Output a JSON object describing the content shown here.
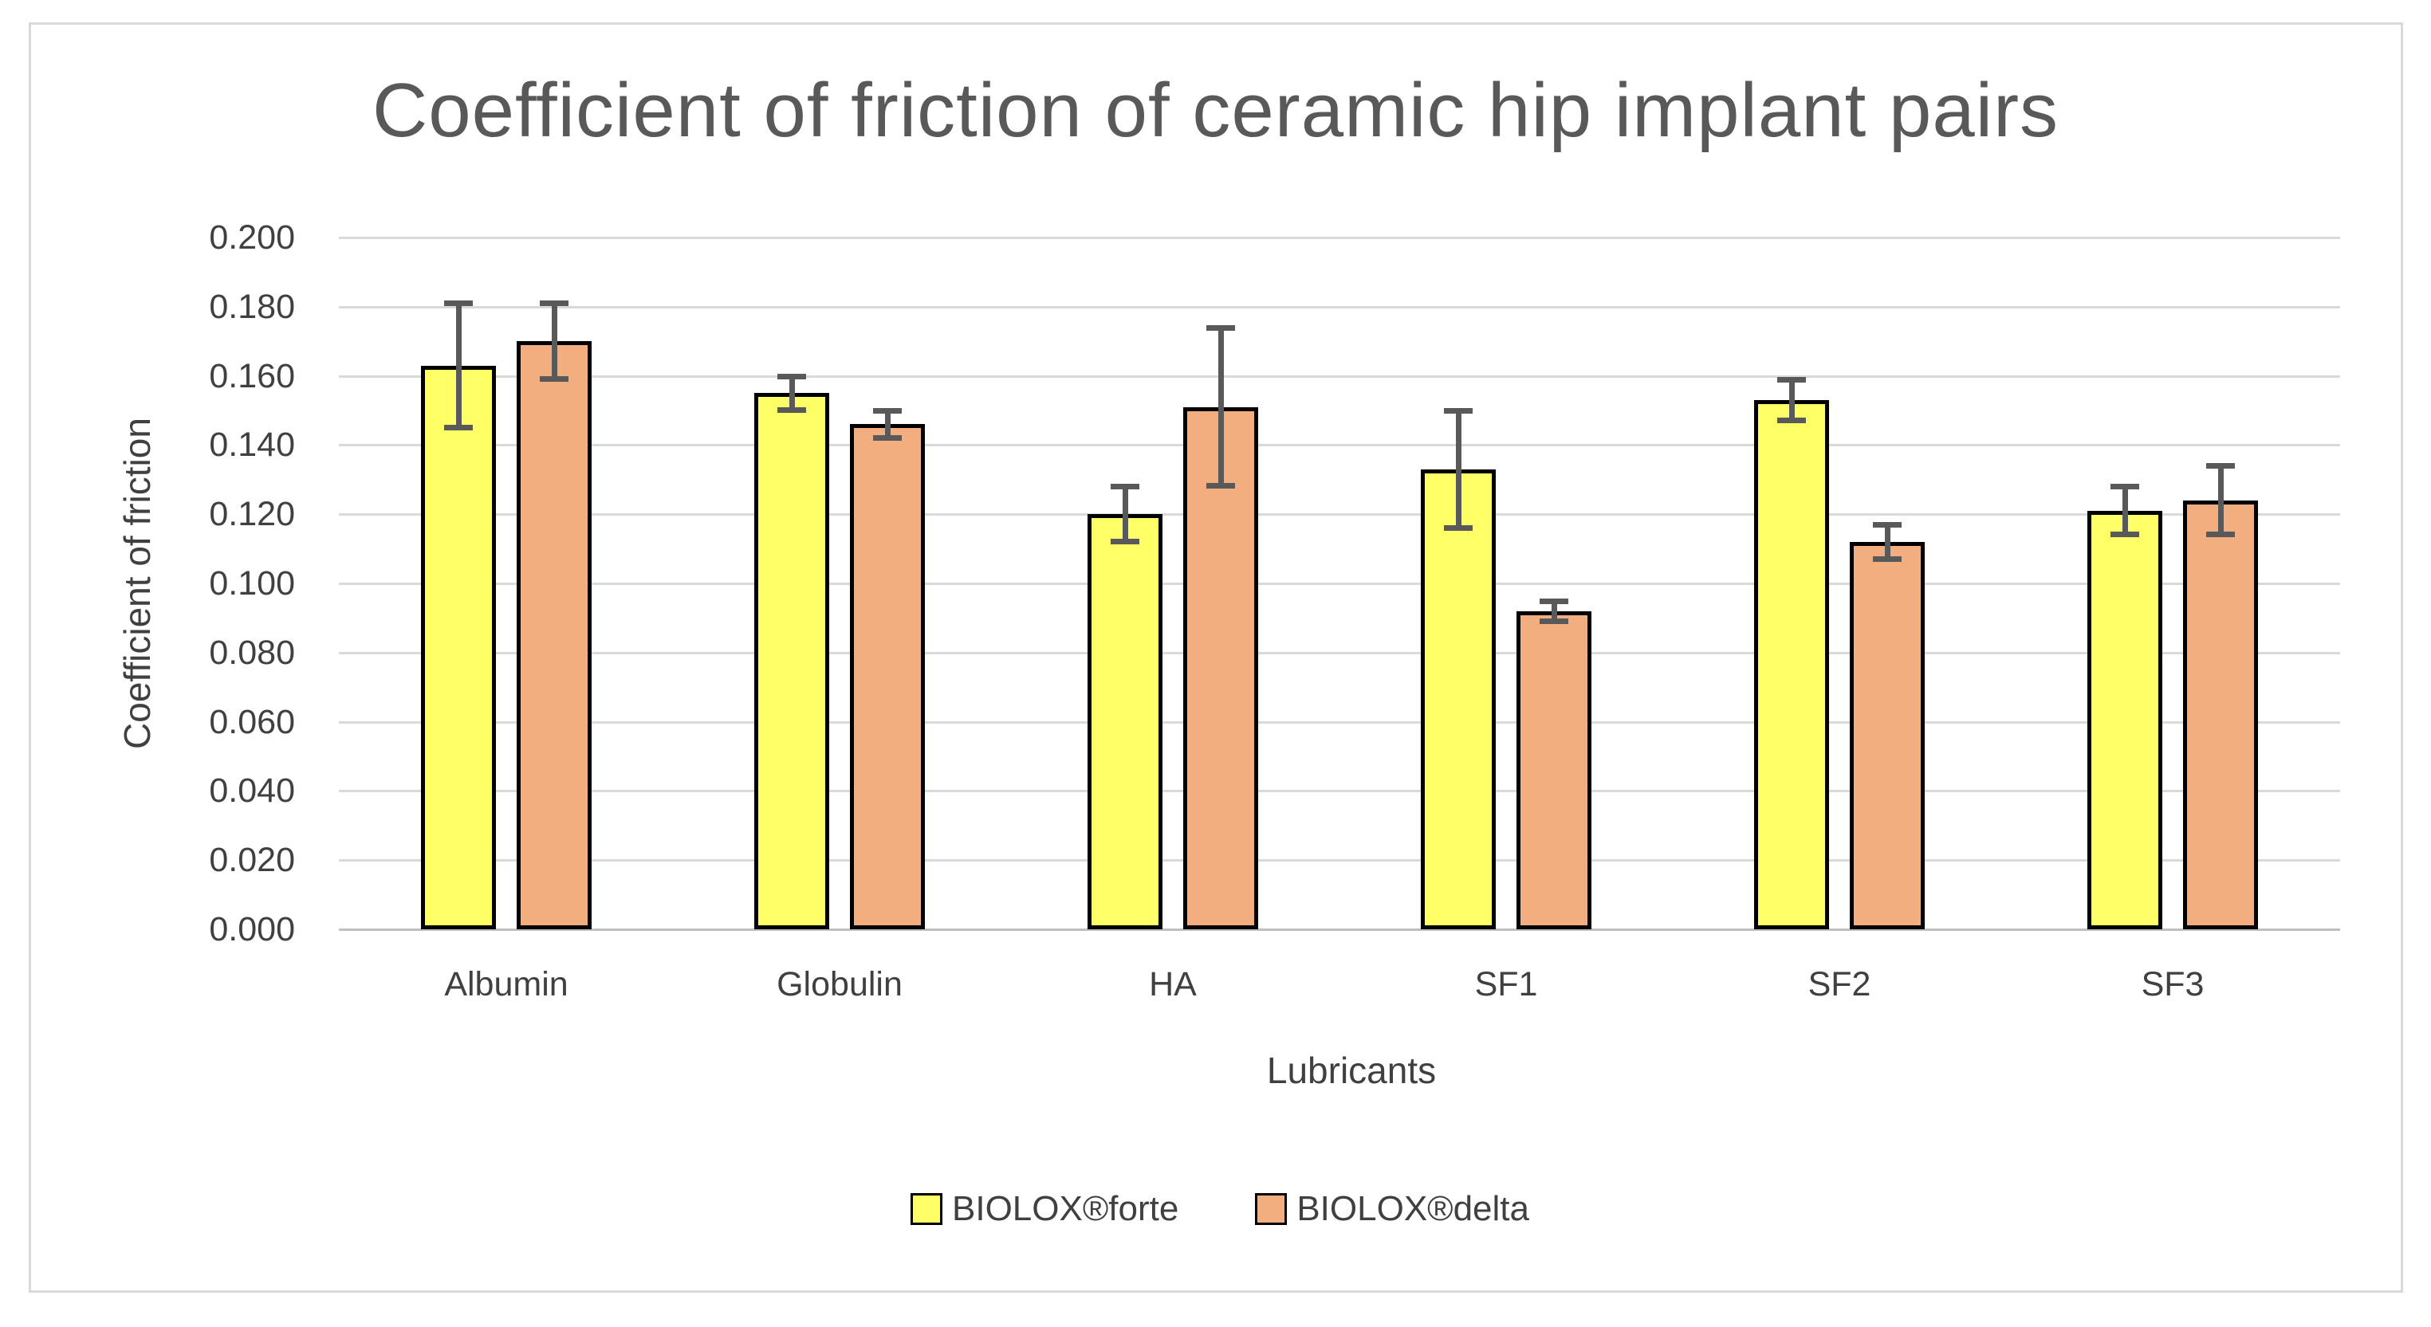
{
  "figure": {
    "border_color": "#d9d9d9",
    "background": "#ffffff"
  },
  "chart_data": {
    "type": "bar",
    "title": "Coefficient of friction of ceramic hip implant pairs",
    "xlabel": "Lubricants",
    "ylabel": "Coefficient of friction",
    "categories": [
      "Albumin",
      "Globulin",
      "HA",
      "SF1",
      "SF2",
      "SF3"
    ],
    "series": [
      {
        "name": "BIOLOX®forte",
        "color": "#FFFF66",
        "values": [
          0.163,
          0.155,
          0.12,
          0.133,
          0.153,
          0.121
        ],
        "errors": [
          0.018,
          0.005,
          0.008,
          0.017,
          0.006,
          0.007
        ]
      },
      {
        "name": "BIOLOX®delta",
        "color": "#F2AE7E",
        "values": [
          0.17,
          0.146,
          0.151,
          0.092,
          0.112,
          0.124
        ],
        "errors": [
          0.011,
          0.004,
          0.023,
          0.003,
          0.005,
          0.01
        ]
      }
    ],
    "ylim": [
      0,
      0.2
    ],
    "ytick_step": 0.02,
    "ytick_decimals": 3,
    "grid": true,
    "legend_position": "bottom",
    "gridline_color": "#d9d9d9",
    "baseline_color": "#bfbfbf",
    "errorbar_color": "#595959",
    "bar_outline_color": "#000000",
    "text_color": "#404040",
    "title_color": "#595959"
  }
}
